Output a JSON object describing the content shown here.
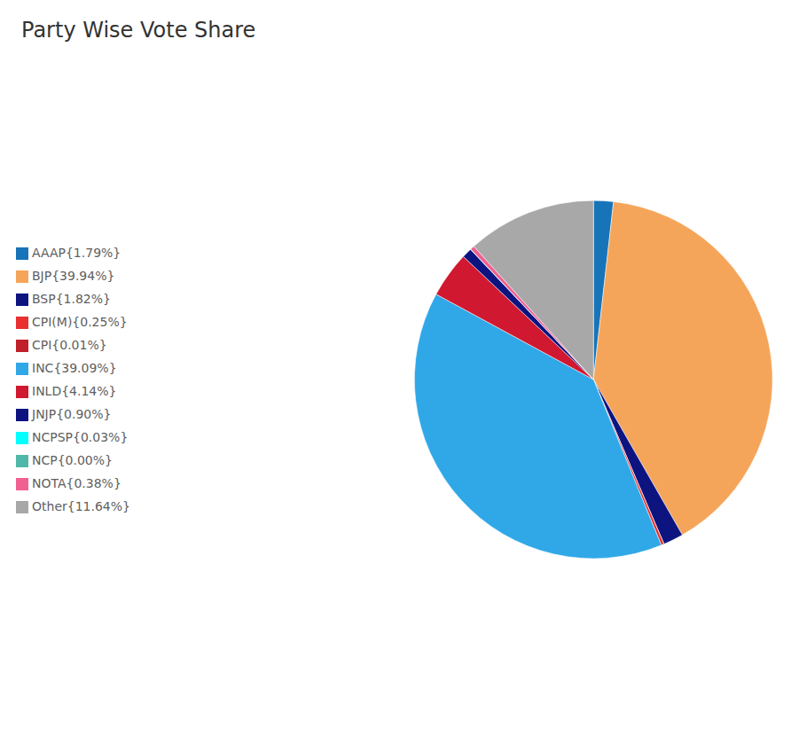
{
  "chart_data": {
    "type": "pie",
    "title": "Party Wise Vote Share",
    "categories": [
      "AAAP{1.79%}",
      "BJP{39.94%}",
      "BSP{1.82%}",
      "CPI{0.01%}",
      "CPI(M){0.25%}",
      "INC{39.09%}",
      "INLD{4.14%}",
      "JNJP{0.90%}",
      "NCP{0.00%}",
      "NCPSP{0.03%}",
      "NOTA{0.38%}",
      "Other{11.64%}"
    ],
    "values": [
      1.79,
      39.94,
      1.82,
      0.01,
      0.25,
      39.09,
      4.14,
      0.9,
      0.0,
      0.03,
      0.38,
      11.64
    ],
    "colors": [
      "#1874b8",
      "#f5a55a",
      "#0d1480",
      "#c0202a",
      "#e83030",
      "#30a8e8",
      "#d01830",
      "#0d1480",
      "#50b8a8",
      "#00ffff",
      "#f06090",
      "#a8a8a8"
    ],
    "legend": "left"
  }
}
